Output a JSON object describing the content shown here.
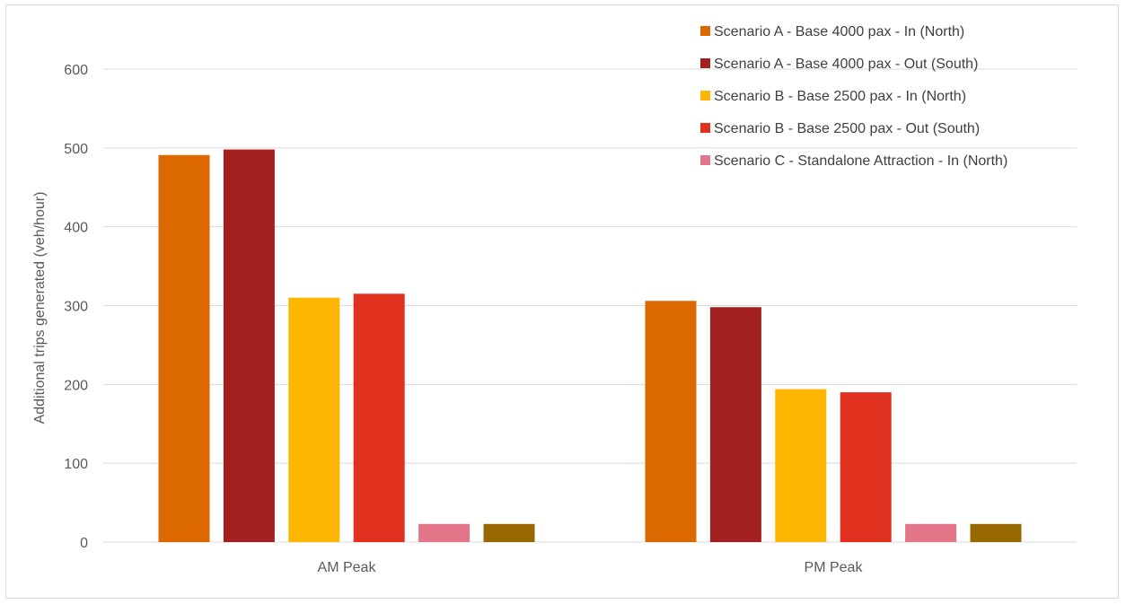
{
  "chart_data": {
    "type": "bar",
    "title": "",
    "xlabel": "",
    "ylabel": "Additional trips generated (veh/hour)",
    "ylim": [
      0,
      600
    ],
    "yticks": [
      0,
      100,
      200,
      300,
      400,
      500,
      600
    ],
    "grid": true,
    "legend_position": "top-right",
    "categories": [
      "AM Peak",
      "PM Peak"
    ],
    "series": [
      {
        "name": "Scenario A - Base 4000 pax - In (North)",
        "color": "#dc6900",
        "values": [
          491,
          306
        ]
      },
      {
        "name": "Scenario A - Base 4000 pax - Out (South)",
        "color": "#a32020",
        "values": [
          498,
          298
        ]
      },
      {
        "name": "Scenario B - Base 2500 pax - In (North)",
        "color": "#ffb600",
        "values": [
          310,
          194
        ]
      },
      {
        "name": "Scenario B - Base 2500 pax - Out (South)",
        "color": "#e0301e",
        "values": [
          315,
          190
        ]
      },
      {
        "name": "Scenario C - Standalone Attraction - In (North)",
        "color": "#e27588",
        "values": [
          23,
          23
        ]
      },
      {
        "name": "",
        "color": "#986800",
        "values": [
          23,
          23
        ]
      }
    ]
  }
}
